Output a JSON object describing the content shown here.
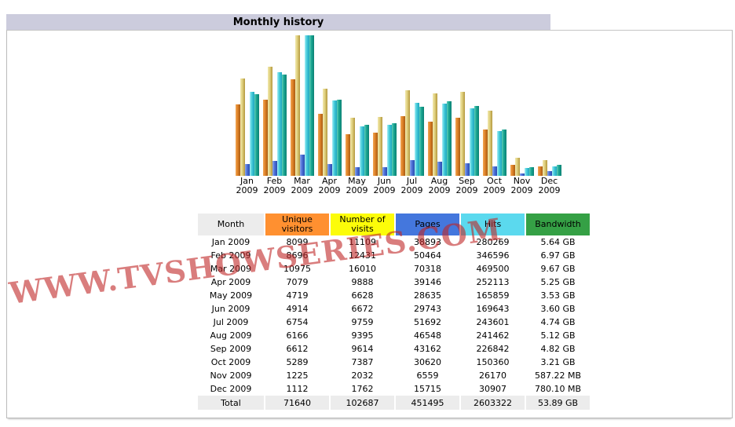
{
  "title": "Monthly history",
  "watermark": "WWW.TVSHOWSERIES.COM",
  "colors": {
    "title_bar_bg": "#CCCCDD",
    "box_border": "#BBBBBB",
    "watermark_red": "#C02626",
    "header_month_bg": "#ECECEC",
    "header_unique_bg": "#FF9030",
    "header_visits_bg": "#FCFC09",
    "header_pages_bg": "#4477DD",
    "header_hits_bg": "#5BD9EE",
    "header_bandwidth_bg": "#35A045",
    "bar_unique": "#DE8128",
    "bar_visits": "#DFCF7D",
    "bar_pages": "#4B6FD6",
    "bar_hits": "#45CBDA",
    "bar_bandwidth": "#18A591"
  },
  "chart_data": {
    "type": "bar",
    "title": "Monthly history",
    "categories": [
      "Jan 2009",
      "Feb 2009",
      "Mar 2009",
      "Apr 2009",
      "May 2009",
      "Jun 2009",
      "Jul 2009",
      "Aug 2009",
      "Sep 2009",
      "Oct 2009",
      "Nov 2009",
      "Dec 2009"
    ],
    "series": [
      {
        "name": "Unique visitors",
        "scale_group": "visits",
        "values": [
          8099,
          8696,
          10975,
          7079,
          4719,
          4914,
          6754,
          6166,
          6612,
          5289,
          1225,
          1112
        ]
      },
      {
        "name": "Number of visits",
        "scale_group": "visits",
        "values": [
          11109,
          12431,
          16010,
          9888,
          6628,
          6672,
          9759,
          9395,
          9614,
          7387,
          2032,
          1762
        ]
      },
      {
        "name": "Pages",
        "scale_group": "hits",
        "values": [
          38893,
          50464,
          70318,
          39146,
          28635,
          29743,
          51692,
          46548,
          43162,
          30620,
          6559,
          15715
        ]
      },
      {
        "name": "Hits",
        "scale_group": "hits",
        "values": [
          280269,
          346596,
          469500,
          252113,
          165859,
          169643,
          243601,
          241462,
          226842,
          150360,
          26170,
          30907
        ]
      },
      {
        "name": "Bandwidth (GB)",
        "scale_group": "bandwidth",
        "values": [
          5.64,
          6.97,
          9.67,
          5.25,
          3.53,
          3.6,
          4.74,
          5.12,
          4.82,
          3.21,
          0.5735,
          0.7618
        ]
      }
    ],
    "legend_position": "none",
    "grid": false,
    "note": "Each scale_group is normalized to its own maximum (AWStats style)"
  },
  "table": {
    "columns": [
      {
        "label": "Month",
        "bg": "#ECECEC"
      },
      {
        "label": "Unique visitors",
        "bg": "#FF9030"
      },
      {
        "label": "Number of visits",
        "bg": "#FCFC09"
      },
      {
        "label": "Pages",
        "bg": "#4477DD"
      },
      {
        "label": "Hits",
        "bg": "#5BD9EE"
      },
      {
        "label": "Bandwidth",
        "bg": "#35A045"
      }
    ],
    "rows": [
      [
        "Jan 2009",
        "8099",
        "11109",
        "38893",
        "280269",
        "5.64 GB"
      ],
      [
        "Feb 2009",
        "8696",
        "12431",
        "50464",
        "346596",
        "6.97 GB"
      ],
      [
        "Mar 2009",
        "10975",
        "16010",
        "70318",
        "469500",
        "9.67 GB"
      ],
      [
        "Apr 2009",
        "7079",
        "9888",
        "39146",
        "252113",
        "5.25 GB"
      ],
      [
        "May 2009",
        "4719",
        "6628",
        "28635",
        "165859",
        "3.53 GB"
      ],
      [
        "Jun 2009",
        "4914",
        "6672",
        "29743",
        "169643",
        "3.60 GB"
      ],
      [
        "Jul 2009",
        "6754",
        "9759",
        "51692",
        "243601",
        "4.74 GB"
      ],
      [
        "Aug 2009",
        "6166",
        "9395",
        "46548",
        "241462",
        "5.12 GB"
      ],
      [
        "Sep 2009",
        "6612",
        "9614",
        "43162",
        "226842",
        "4.82 GB"
      ],
      [
        "Oct 2009",
        "5289",
        "7387",
        "30620",
        "150360",
        "3.21 GB"
      ],
      [
        "Nov 2009",
        "1225",
        "2032",
        "6559",
        "26170",
        "587.22 MB"
      ],
      [
        "Dec 2009",
        "1112",
        "1762",
        "15715",
        "30907",
        "780.10 MB"
      ]
    ],
    "total_row": [
      "Total",
      "71640",
      "102687",
      "451495",
      "2603322",
      "53.89 GB"
    ]
  }
}
